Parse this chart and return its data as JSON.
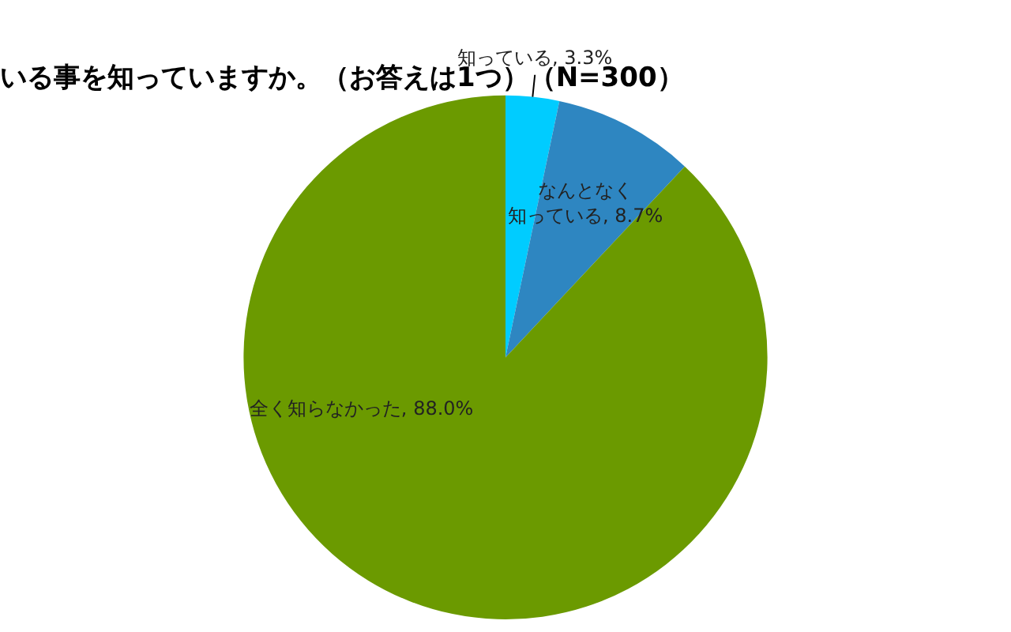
{
  "chart_data": {
    "type": "pie",
    "title": "いる事を知っていますか。（お答えは1つ）（N=300）",
    "categories": [
      "知っている",
      "なんとなく知っている",
      "全く知らなかった"
    ],
    "values": [
      3.3,
      8.7,
      88.0
    ],
    "value_labels": [
      "3.3%",
      "8.7%",
      "88.0%"
    ],
    "colors": [
      "#00ccff",
      "#2e86c1",
      "#6b9a00"
    ],
    "legend": false
  }
}
